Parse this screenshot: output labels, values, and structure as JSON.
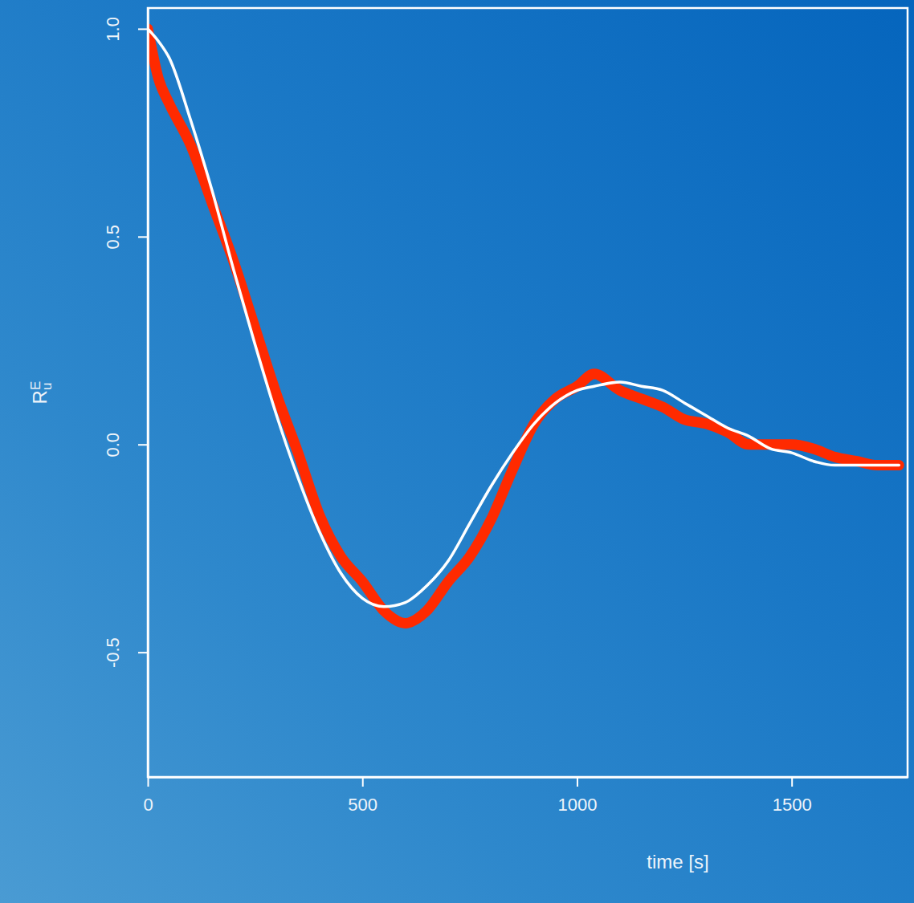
{
  "chart_data": {
    "type": "line",
    "x_label": "time [s]",
    "y_label": {
      "text": "R",
      "subscript": "u",
      "superscript": "E"
    },
    "xlim": [
      0,
      1770
    ],
    "xticks": [
      0,
      500,
      1000,
      1500
    ],
    "ylim": [
      -0.8,
      1.05
    ],
    "yticks": [
      {
        "value": -0.5,
        "label": "-0.5"
      },
      {
        "value": 0,
        "label": "0.0"
      },
      0.5,
      {
        "value": 1,
        "label": "1.0"
      }
    ],
    "grid": false,
    "x": [
      0,
      25,
      50,
      100,
      150,
      200,
      250,
      300,
      350,
      400,
      450,
      500,
      550,
      600,
      650,
      700,
      750,
      800,
      850,
      900,
      950,
      1000,
      1040,
      1100,
      1150,
      1200,
      1250,
      1300,
      1350,
      1400,
      1450,
      1500,
      1550,
      1600,
      1650,
      1700,
      1750
    ],
    "series": [
      {
        "color": "#ff2a00",
        "line_style": "solid",
        "values": [
          1.0,
          0.88,
          0.82,
          0.72,
          0.58,
          0.44,
          0.28,
          0.12,
          -0.02,
          -0.17,
          -0.27,
          -0.33,
          -0.4,
          -0.43,
          -0.4,
          -0.33,
          -0.27,
          -0.18,
          -0.06,
          0.05,
          0.11,
          0.14,
          0.17,
          0.13,
          0.11,
          0.09,
          0.06,
          0.05,
          0.03,
          0.0,
          0.0,
          0.0,
          -0.01,
          -0.03,
          -0.04,
          -0.05,
          -0.05
        ]
      },
      {
        "color": "#ffffff",
        "line_style": "solid",
        "values": [
          1.0,
          0.97,
          0.93,
          0.78,
          0.61,
          0.42,
          0.24,
          0.07,
          -0.08,
          -0.21,
          -0.31,
          -0.37,
          -0.39,
          -0.38,
          -0.34,
          -0.28,
          -0.19,
          -0.1,
          -0.02,
          0.05,
          0.1,
          0.13,
          0.14,
          0.15,
          0.14,
          0.13,
          0.1,
          0.07,
          0.04,
          0.02,
          -0.01,
          -0.02,
          -0.04,
          -0.05,
          -0.05,
          -0.05,
          -0.05
        ]
      }
    ]
  }
}
